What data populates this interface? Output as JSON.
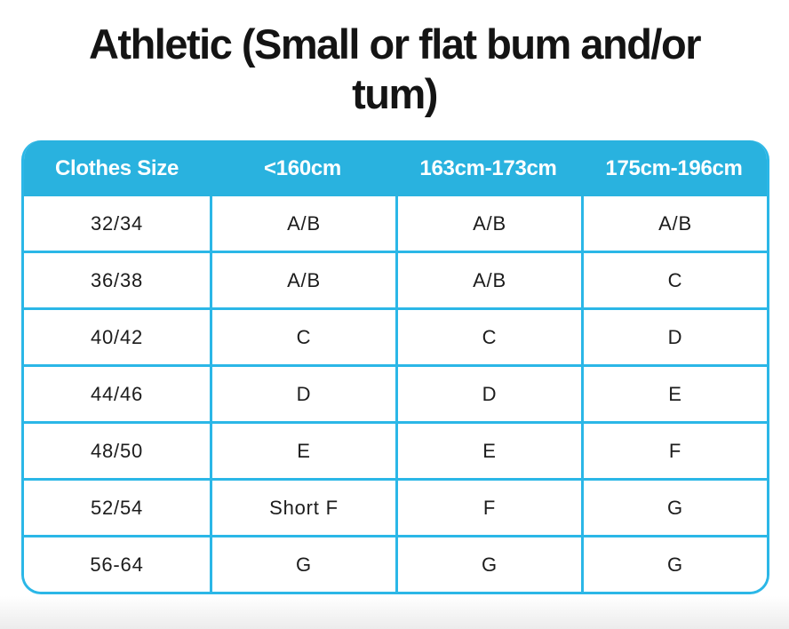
{
  "title": {
    "full": "Athletic (Small or flat bum and/or tum)",
    "lines": [
      "Athletic (Small or flat bum and/or",
      "tum)"
    ]
  },
  "table": {
    "columns": [
      "Clothes Size",
      "<160cm",
      "163cm-173cm",
      "175cm-196cm"
    ],
    "rows": [
      [
        "32/34",
        "A/B",
        "A/B",
        "A/B"
      ],
      [
        "36/38",
        "A/B",
        "A/B",
        "C"
      ],
      [
        "40/42",
        "C",
        "C",
        "D"
      ],
      [
        "44/46",
        "D",
        "D",
        "E"
      ],
      [
        "48/50",
        "E",
        "E",
        "F"
      ],
      [
        "52/54",
        "Short F",
        "F",
        "G"
      ],
      [
        "56-64",
        "G",
        "G",
        "G"
      ]
    ],
    "colors": {
      "header_bg": "#29b2df",
      "grid_border": "#2bb7e7",
      "header_text": "#ffffff",
      "cell_text": "#1c1c1c",
      "title_text": "#141414"
    }
  }
}
